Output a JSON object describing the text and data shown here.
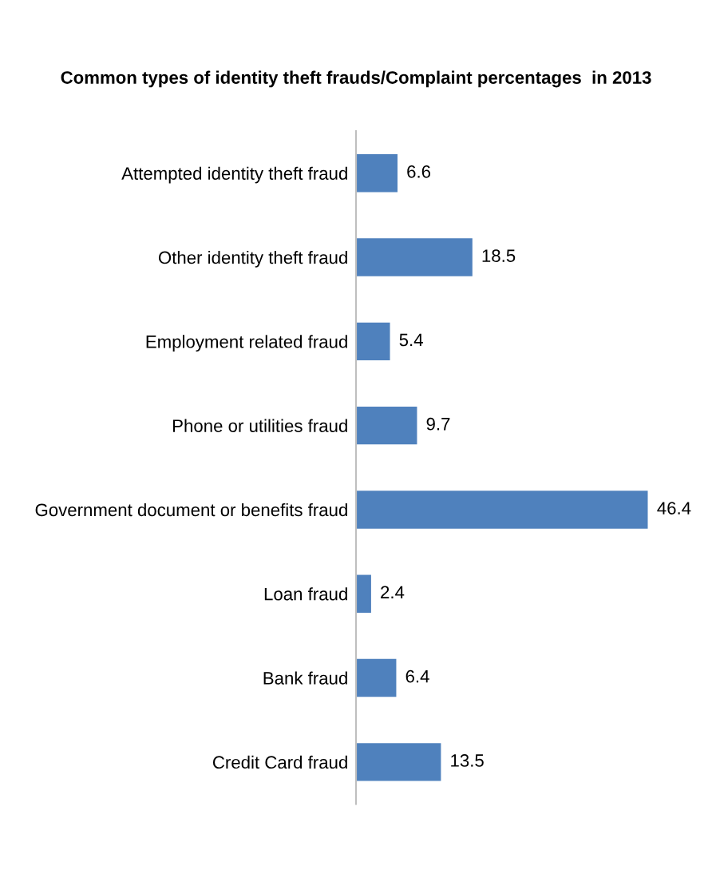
{
  "chart_data": {
    "type": "bar",
    "orientation": "horizontal",
    "title": "Common types of identity theft frauds/Complaint percentages  in 2013",
    "categories": [
      "Attempted identity theft fraud",
      "Other identity theft fraud",
      "Employment related fraud",
      "Phone or utilities fraud",
      "Government document or benefits fraud",
      "Loan fraud",
      "Bank fraud",
      "Credit Card fraud"
    ],
    "values": [
      6.6,
      18.5,
      5.4,
      9.7,
      46.4,
      2.4,
      6.4,
      13.5
    ],
    "color": "#4f81bd",
    "data_labels": true,
    "grid": false,
    "legend": false
  }
}
